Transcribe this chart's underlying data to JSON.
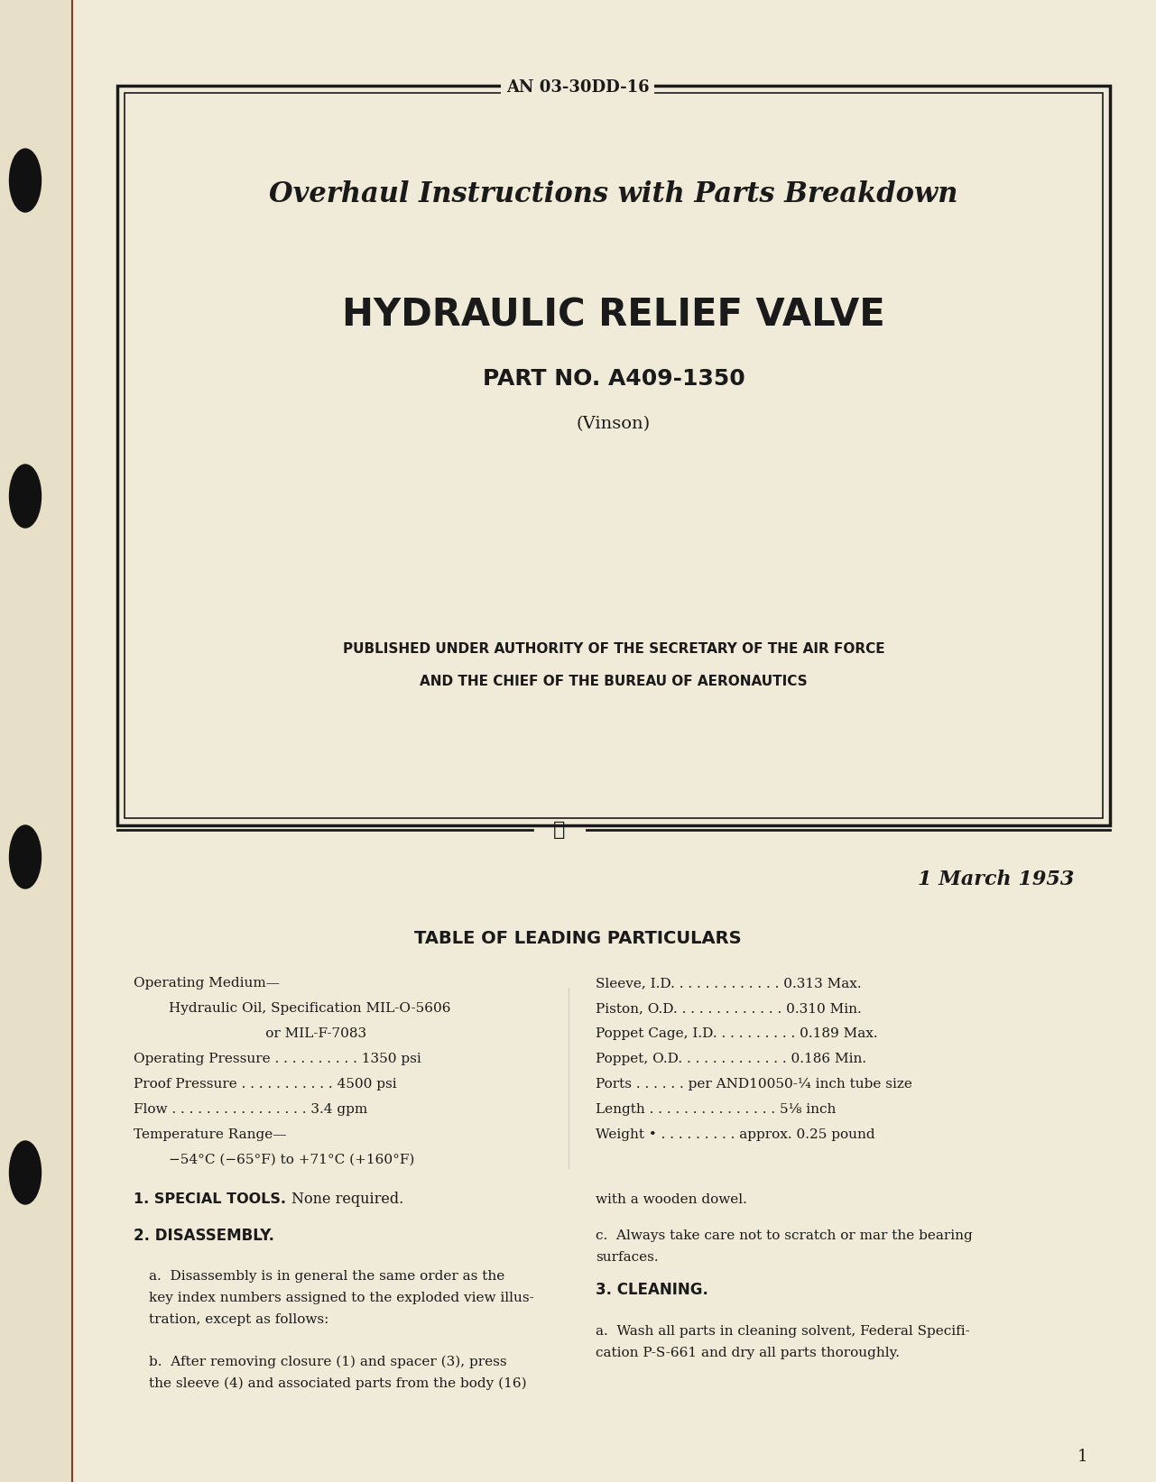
{
  "bg_color": "#f5f0e0",
  "page_bg": "#f0ead8",
  "border_color": "#1a1a1a",
  "text_color": "#1a1a1a",
  "an_number": "AN 03-30DD-16",
  "title1": "Overhaul Instructions with Parts Breakdown",
  "title2": "HYDRAULIC RELIEF VALVE",
  "title3": "PART NO. A409-1350",
  "title4": "(Vinson)",
  "published_line1": "PUBLISHED UNDER AUTHORITY OF THE SECRETARY OF THE AIR FORCE",
  "published_line2": "AND THE CHIEF OF THE BUREAU OF AERONAUTICS",
  "date": "1 March 1953",
  "table_title": "TABLE OF LEADING PARTICULARS",
  "left_col": [
    "Operating Medium—",
    "        Hydraulic Oil, Specification MIL-O-5606",
    "                              or MIL-F-7083",
    "Operating Pressure . . . . . . . . . . 1350 psi",
    "Proof Pressure . . . . . . . . . . . 4500 psi",
    "Flow . . . . . . . . . . . . . . . . 3.4 gpm",
    "Temperature Range—",
    "        −54°C (−65°F) to +71°C (+160°F)"
  ],
  "right_col": [
    "Sleeve, I.D. . . . . . . . . . . . . 0.313 Max.",
    "Piston, O.D. . . . . . . . . . . . . 0.310 Min.",
    "Poppet Cage, I.D. . . . . . . . . . 0.189 Max.",
    "Poppet, O.D. . . . . . . . . . . . . 0.186 Min.",
    "Ports . . . . . . per AND10050-¼ inch tube size",
    "Length . . . . . . . . . . . . . . . 5⅛ inch",
    "Weight • . . . . . . . . . approx. 0.25 pound"
  ],
  "section1_title": "1. SPECIAL TOOLS.",
  "section1_text": "None required.",
  "section2_title": "2. DISASSEMBLY.",
  "section2a": "a.  Disassembly is in general the same order as the key index numbers assigned to the exploded view illustration, except as follows:",
  "section2b": "b.  After removing closure (1) and spacer (3), press the sleeve (4) and associated parts from the body (16)",
  "section2c": "with a wooden dowel.",
  "section2d": "c.  Always take care not to scratch or mar the bearing surfaces.",
  "section3_title": "3. CLEANING.",
  "section3a": "a.  Wash all parts in cleaning solvent, Federal Specification P-S-661 and dry all parts thoroughly.",
  "page_num": "1"
}
